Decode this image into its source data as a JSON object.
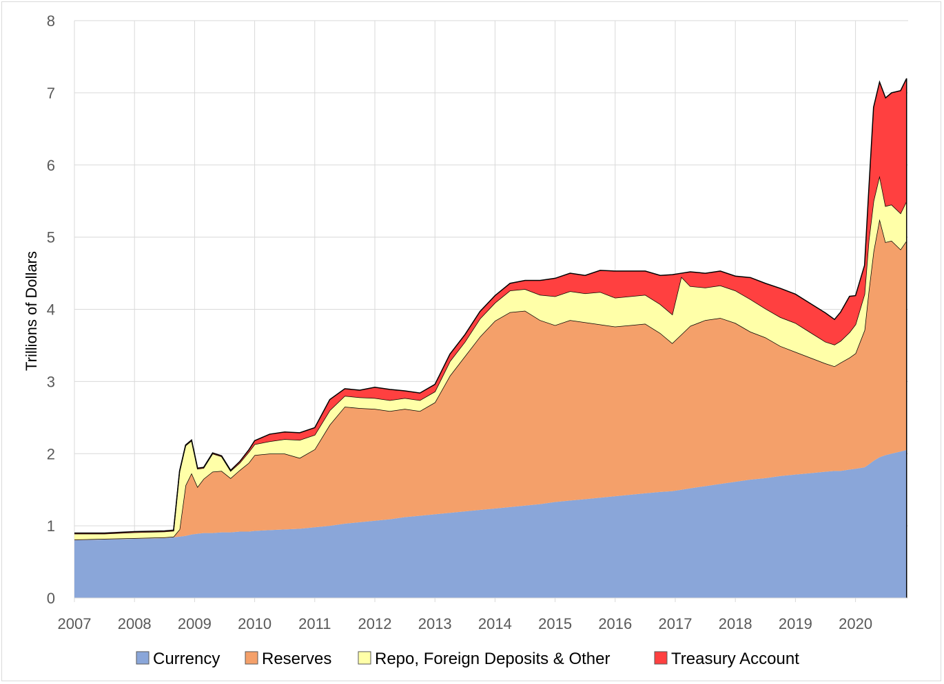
{
  "chart_data": {
    "type": "area",
    "stacked": true,
    "title": "",
    "xlabel": "",
    "ylabel": "Trillions of Dollars",
    "ylim": [
      0,
      8
    ],
    "xlim": [
      2007,
      2020.85
    ],
    "yticks": [
      "0",
      "1",
      "2",
      "3",
      "4",
      "5",
      "6",
      "7",
      "8"
    ],
    "xticks": [
      "2007",
      "2008",
      "2009",
      "2010",
      "2011",
      "2012",
      "2013",
      "2014",
      "2015",
      "2016",
      "2017",
      "2018",
      "2019",
      "2020"
    ],
    "grid": true,
    "legend_position": "bottom",
    "x": [
      2007.0,
      2007.5,
      2008.0,
      2008.5,
      2008.65,
      2008.75,
      2008.85,
      2008.95,
      2009.05,
      2009.15,
      2009.3,
      2009.45,
      2009.6,
      2009.75,
      2009.9,
      2010.0,
      2010.25,
      2010.5,
      2010.75,
      2011.0,
      2011.25,
      2011.5,
      2011.75,
      2012.0,
      2012.25,
      2012.5,
      2012.75,
      2013.0,
      2013.25,
      2013.5,
      2013.75,
      2014.0,
      2014.25,
      2014.5,
      2014.75,
      2015.0,
      2015.25,
      2015.5,
      2015.75,
      2016.0,
      2016.25,
      2016.5,
      2016.75,
      2016.95,
      2017.1,
      2017.25,
      2017.5,
      2017.75,
      2018.0,
      2018.25,
      2018.5,
      2018.75,
      2019.0,
      2019.25,
      2019.5,
      2019.65,
      2019.75,
      2019.9,
      2020.0,
      2020.15,
      2020.22,
      2020.3,
      2020.4,
      2020.5,
      2020.6,
      2020.75,
      2020.85
    ],
    "series": [
      {
        "name": "Currency",
        "color": "#8aa6d9",
        "values": [
          0.8,
          0.81,
          0.82,
          0.83,
          0.84,
          0.85,
          0.86,
          0.88,
          0.89,
          0.9,
          0.9,
          0.91,
          0.91,
          0.92,
          0.92,
          0.93,
          0.94,
          0.95,
          0.96,
          0.98,
          1.0,
          1.03,
          1.05,
          1.07,
          1.09,
          1.12,
          1.14,
          1.16,
          1.18,
          1.2,
          1.22,
          1.24,
          1.26,
          1.28,
          1.3,
          1.33,
          1.35,
          1.37,
          1.39,
          1.41,
          1.43,
          1.45,
          1.47,
          1.48,
          1.5,
          1.52,
          1.55,
          1.58,
          1.61,
          1.64,
          1.66,
          1.69,
          1.71,
          1.73,
          1.75,
          1.76,
          1.76,
          1.78,
          1.79,
          1.81,
          1.85,
          1.9,
          1.95,
          1.98,
          2.0,
          2.03,
          2.05
        ]
      },
      {
        "name": "Reserves",
        "color": "#f4a06a",
        "values": [
          0.01,
          0.01,
          0.01,
          0.01,
          0.01,
          0.1,
          0.7,
          0.85,
          0.65,
          0.75,
          0.85,
          0.85,
          0.75,
          0.85,
          0.95,
          1.05,
          1.06,
          1.05,
          0.98,
          1.08,
          1.4,
          1.62,
          1.58,
          1.55,
          1.5,
          1.5,
          1.45,
          1.55,
          1.9,
          2.15,
          2.4,
          2.6,
          2.7,
          2.7,
          2.55,
          2.45,
          2.5,
          2.45,
          2.4,
          2.35,
          2.35,
          2.35,
          2.2,
          2.05,
          2.15,
          2.25,
          2.3,
          2.3,
          2.2,
          2.05,
          1.95,
          1.8,
          1.7,
          1.6,
          1.5,
          1.45,
          1.5,
          1.55,
          1.6,
          1.9,
          2.4,
          2.9,
          3.3,
          2.95,
          2.95,
          2.8,
          2.9
        ]
      },
      {
        "name": "Repo, Foreign Deposits & Other",
        "color": "#ffffa8",
        "values": [
          0.08,
          0.07,
          0.08,
          0.08,
          0.08,
          0.8,
          0.55,
          0.45,
          0.25,
          0.15,
          0.25,
          0.2,
          0.1,
          0.1,
          0.15,
          0.15,
          0.17,
          0.2,
          0.25,
          0.2,
          0.2,
          0.15,
          0.15,
          0.15,
          0.15,
          0.15,
          0.15,
          0.15,
          0.2,
          0.2,
          0.25,
          0.25,
          0.3,
          0.3,
          0.35,
          0.4,
          0.4,
          0.4,
          0.45,
          0.4,
          0.4,
          0.4,
          0.4,
          0.4,
          0.8,
          0.55,
          0.45,
          0.45,
          0.45,
          0.45,
          0.4,
          0.4,
          0.4,
          0.35,
          0.3,
          0.3,
          0.3,
          0.35,
          0.4,
          0.5,
          0.7,
          0.7,
          0.6,
          0.5,
          0.5,
          0.5,
          0.55
        ]
      },
      {
        "name": "Treasury Account",
        "color": "#ff4040",
        "values": [
          0.01,
          0.01,
          0.01,
          0.01,
          0.01,
          0.01,
          0.01,
          0.01,
          0.01,
          0.01,
          0.01,
          0.01,
          0.01,
          0.02,
          0.03,
          0.05,
          0.1,
          0.1,
          0.1,
          0.1,
          0.15,
          0.1,
          0.1,
          0.15,
          0.15,
          0.1,
          0.1,
          0.1,
          0.1,
          0.1,
          0.1,
          0.1,
          0.1,
          0.12,
          0.2,
          0.25,
          0.25,
          0.25,
          0.3,
          0.37,
          0.35,
          0.33,
          0.4,
          0.55,
          0.05,
          0.2,
          0.2,
          0.2,
          0.2,
          0.3,
          0.35,
          0.4,
          0.4,
          0.4,
          0.4,
          0.35,
          0.4,
          0.5,
          0.4,
          0.4,
          0.7,
          1.3,
          1.3,
          1.5,
          1.55,
          1.7,
          1.7
        ]
      }
    ]
  }
}
